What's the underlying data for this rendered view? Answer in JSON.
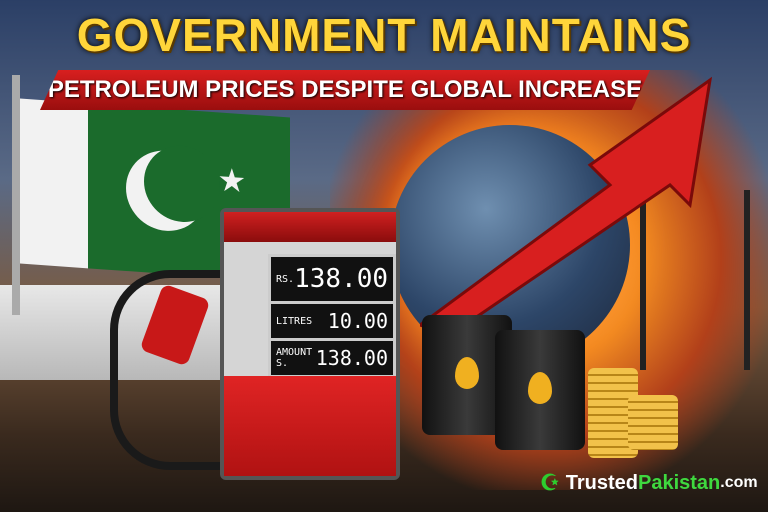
{
  "headline": {
    "title": "GOVERNMENT MAINTAINS",
    "subtitle": "PETROLEUM PRICES DESPITE GLOBAL INCREASE"
  },
  "pump_display": {
    "rows": [
      {
        "label": "RS.",
        "value": "138.00"
      },
      {
        "label": "LITRES",
        "value": "10.00"
      },
      {
        "label": "AMOUNT",
        "value": "138.00",
        "prefix": "S."
      }
    ]
  },
  "brand": {
    "part1": "Trusted",
    "part2": "Pakistan",
    "part3": ".com",
    "icon": "crescent-star-icon",
    "accent": "#3fd83f"
  },
  "colors": {
    "title": "#ffd53a",
    "banner": "#c81818",
    "arrow": "#d81f1f"
  }
}
